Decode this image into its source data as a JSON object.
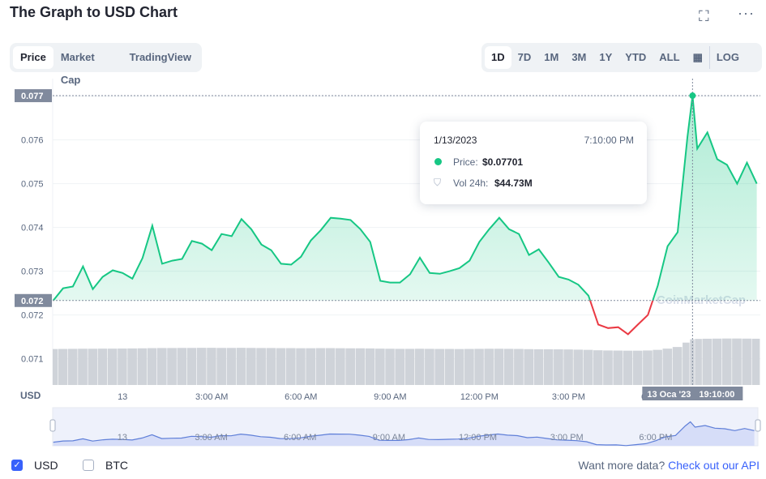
{
  "header": {
    "title": "The Graph to USD Chart"
  },
  "tabs": [
    "Price",
    "Market Cap",
    "TradingView"
  ],
  "ranges": [
    "1D",
    "7D",
    "1M",
    "3M",
    "1Y",
    "YTD",
    "ALL"
  ],
  "log_button": "LOG",
  "currencies": [
    "USD",
    "BTC"
  ],
  "footer": {
    "text": "Want more data?",
    "link": "Check out our API"
  },
  "chart_data": {
    "type": "line",
    "y_axis_label": "USD",
    "watermark": "CoinMarketCap",
    "x": [
      -2.33,
      -2,
      -1.67,
      -1.33,
      -1,
      -0.67,
      -0.33,
      0,
      0.33,
      0.67,
      1,
      1.33,
      1.67,
      2,
      2.33,
      2.67,
      3,
      3.33,
      3.67,
      4,
      4.33,
      4.67,
      5,
      5.33,
      5.67,
      6,
      6.33,
      6.67,
      7,
      7.33,
      7.67,
      8,
      8.33,
      8.67,
      9,
      9.33,
      9.67,
      10,
      10.33,
      10.67,
      11,
      11.33,
      11.67,
      12,
      12.33,
      12.67,
      13,
      13.33,
      13.67,
      14,
      14.33,
      14.67,
      15,
      15.33,
      15.67,
      16,
      16.33,
      16.67,
      17,
      17.33,
      17.67,
      18,
      18.33,
      18.67,
      19,
      19.17,
      19.33,
      19.67,
      20,
      20.33,
      20.67,
      21,
      21.33
    ],
    "series": [
      {
        "name": "Price",
        "color": "#16c784",
        "down_color": "#ea3943",
        "values": [
          0.07233,
          0.07261,
          0.07265,
          0.07311,
          0.07259,
          0.07287,
          0.07302,
          0.07296,
          0.07283,
          0.0733,
          0.07404,
          0.07317,
          0.07324,
          0.07328,
          0.07369,
          0.07363,
          0.07348,
          0.07385,
          0.0738,
          0.07419,
          0.07396,
          0.07361,
          0.07348,
          0.07317,
          0.07315,
          0.07333,
          0.0737,
          0.07394,
          0.07422,
          0.0742,
          0.07417,
          0.07396,
          0.07367,
          0.07278,
          0.07274,
          0.07274,
          0.07293,
          0.07331,
          0.07296,
          0.07294,
          0.073,
          0.07307,
          0.07324,
          0.07367,
          0.07396,
          0.07422,
          0.07396,
          0.07385,
          0.07337,
          0.0735,
          0.0732,
          0.07287,
          0.07281,
          0.07269,
          0.07244,
          0.07178,
          0.0717,
          0.07172,
          0.07156,
          0.07178,
          0.072,
          0.07267,
          0.07357,
          0.07389,
          0.07607,
          0.07701,
          0.0758,
          0.07617,
          0.07556,
          0.07543,
          0.075,
          0.07548,
          0.075
        ]
      }
    ],
    "volume": {
      "color": "#cfd3d9",
      "vlim": [
        0,
        300
      ],
      "values": [
        35.2,
        35.3,
        35.4,
        35.5,
        35.5,
        35.6,
        35.6,
        35.7,
        35.8,
        35.9,
        36.1,
        36.2,
        36.2,
        36.3,
        36.3,
        36.4,
        36.4,
        36.3,
        36.3,
        36.4,
        36.3,
        36.2,
        36.2,
        36.1,
        36.1,
        36.0,
        36.0,
        36.1,
        36.1,
        36.0,
        35.9,
        35.9,
        35.8,
        35.6,
        35.5,
        35.4,
        35.4,
        35.5,
        35.4,
        35.3,
        35.3,
        35.2,
        35.3,
        35.4,
        35.5,
        35.5,
        35.4,
        35.3,
        35.1,
        35.0,
        35.0,
        34.9,
        34.8,
        34.6,
        34.4,
        34.0,
        33.8,
        33.7,
        33.6,
        33.6,
        33.8,
        34.4,
        35.6,
        37.2,
        41.5,
        44.73,
        45.1,
        45.3,
        45.4,
        45.5,
        45.5,
        45.4,
        45.3
      ]
    },
    "xlim": [
      -2.35,
      21.45
    ],
    "xticks": [
      {
        "value": 0,
        "label": "13"
      },
      {
        "value": 3,
        "label": "3:00 AM"
      },
      {
        "value": 6,
        "label": "6:00 AM"
      },
      {
        "value": 9,
        "label": "9:00 AM"
      },
      {
        "value": 12,
        "label": "12:00 PM"
      },
      {
        "value": 15,
        "label": "3:00 PM"
      },
      {
        "value": 18,
        "label": "6:00 PM"
      }
    ],
    "ylim": [
      0.0704,
      0.0774
    ],
    "yticks": [
      0.071,
      0.072,
      0.073,
      0.074,
      0.075,
      0.076,
      0.077
    ],
    "grid": true,
    "open_label": "0.072",
    "crosshair": {
      "x": 19.17,
      "y": 0.07701,
      "y_label": "0.077",
      "x_label": "13 Oca '23",
      "x_time": "19:10:00"
    },
    "tooltip": {
      "date": "1/13/2023",
      "time": "7:10:00 PM",
      "price_label": "Price:",
      "price": "$0.07701",
      "volume_label": "Vol 24h:",
      "volume": "$44.73M"
    }
  }
}
